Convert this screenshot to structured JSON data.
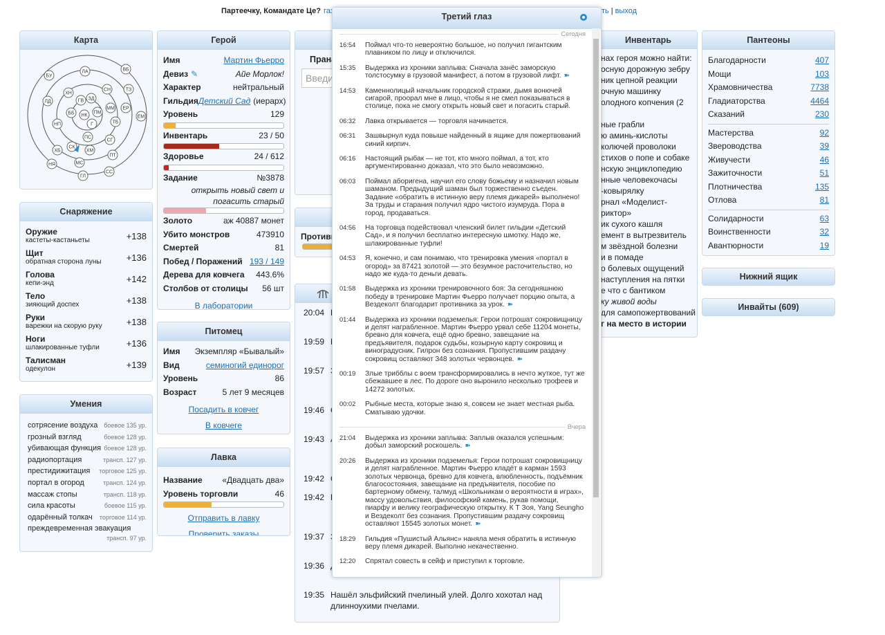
{
  "top_bar": {
    "greeting": "Партеечку, Командате Це?",
    "links": [
      "газ",
      "ть",
      "выход"
    ],
    "separator": "|"
  },
  "map": {
    "title": "Карта",
    "towns": [
      "БУ",
      "ЛА",
      "ВБ",
      "ТЗ",
      "ХН",
      "ГВ",
      "ЗД",
      "СН",
      "ЛД",
      "ББ",
      "НК",
      "ПМ",
      "ММ",
      "ЕР",
      "ЕМ",
      "Г",
      "ТБ",
      "НП",
      "ПС",
      "СГ",
      "ХБ",
      "СК",
      "ХМ",
      "ПТ",
      "НЯ",
      "МС",
      "СС",
      "ГЛ"
    ]
  },
  "hero": {
    "title": "Герой",
    "rows": [
      {
        "label": "Имя",
        "value": "Мартин Фьерро",
        "style": "link"
      },
      {
        "label": "Девиз",
        "icon": "✎",
        "value": "Айе Морлок!",
        "style": "italic"
      },
      {
        "label": "Характер",
        "value": "нейтральный"
      },
      {
        "label": "Гильдия",
        "value": "Детский Сад",
        "style": "italic-link",
        "suffix": "(иерарх)"
      },
      {
        "label": "Уровень",
        "value": "129",
        "bar": 10,
        "bar_color": "#f0b135"
      },
      {
        "label": "Инвентарь",
        "value": "23 / 50",
        "bar": 46,
        "bar_color": "#a32a1c"
      },
      {
        "label": "Здоровье",
        "value": "24 / 612",
        "bar": 4,
        "bar_color": "#d81c1c"
      },
      {
        "label": "Задание",
        "value": "№3878",
        "note": "открыть новый свет и погасить старый",
        "bar": 35,
        "bar_color": "#f2a7b0"
      },
      {
        "label": "Золото",
        "value": "аж 40887 монет"
      },
      {
        "label": "Убито монстров",
        "value": "473910"
      },
      {
        "label": "Смертей",
        "value": "81"
      },
      {
        "label": "Побед / Поражений",
        "value": "193 / 149",
        "style": "link"
      },
      {
        "label": "Дерева для ковчега",
        "value": "443.6%"
      },
      {
        "label": "Столбов от столицы",
        "value": "56 шт"
      }
    ],
    "links": [
      "В лаборатории"
    ]
  },
  "equipment": {
    "title": "Снаряжение",
    "items": [
      {
        "slot": "Оружие",
        "item": "кастеты-кастаньеты",
        "bonus": "+138"
      },
      {
        "slot": "Щит",
        "item": "обратная сторона луны",
        "bonus": "+136"
      },
      {
        "slot": "Голова",
        "item": "кепи-энд",
        "bonus": "+142"
      },
      {
        "slot": "Тело",
        "item": "зияющий доспех",
        "bonus": "+138"
      },
      {
        "slot": "Руки",
        "item": "варежки на скорую руку",
        "bonus": "+138"
      },
      {
        "slot": "Ноги",
        "item": "шлакированные туфли",
        "bonus": "+136"
      },
      {
        "slot": "Талисман",
        "item": "одекулон",
        "bonus": "+139"
      }
    ]
  },
  "skills": {
    "title": "Умения",
    "items": [
      {
        "name": "сотрясение воздуха",
        "level": "боевое 135 ур."
      },
      {
        "name": "грозный взгляд",
        "level": "боевое 128 ур."
      },
      {
        "name": "убивающая функция",
        "level": "боевое 128 ур."
      },
      {
        "name": "радиопортация",
        "level": "трансп. 127 ур."
      },
      {
        "name": "престидижитация",
        "level": "торговое 125 ур."
      },
      {
        "name": "портал в огород",
        "level": "трансп. 124 ур."
      },
      {
        "name": "массаж стопы",
        "level": "трансп. 118 ур."
      },
      {
        "name": "сила красоты",
        "level": "боевое 115 ур."
      },
      {
        "name": "одарённый толкач",
        "level": "торговое 114 ур."
      },
      {
        "name": "преждевременная эвакуация",
        "level": "трансп. 97 ур."
      }
    ]
  },
  "pet": {
    "title": "Питомец",
    "rows": [
      {
        "label": "Имя",
        "value": "Экземпляр «Бывалый»"
      },
      {
        "label": "Вид",
        "value": "семиногий единорог",
        "style": "link"
      },
      {
        "label": "Уровень",
        "value": "86"
      },
      {
        "label": "Возраст",
        "value": "5 лет 9 месяцев"
      }
    ],
    "links": [
      "Посадить в ковчег",
      "В ковчеге"
    ]
  },
  "shop": {
    "title": "Лавка",
    "rows": [
      {
        "label": "Название",
        "value": "«Двадцать два»"
      },
      {
        "label": "Уровень торговли",
        "value": "46",
        "bar": 40,
        "bar_color": "#f0b135"
      }
    ],
    "links": [
      "Отправить в лавку",
      "Проверить заказы"
    ]
  },
  "prana": {
    "label": "Прана",
    "input": "Введит"
  },
  "opponent": {
    "label": "Противн",
    "bar": 100,
    "bar_color": "#e9ae3c"
  },
  "diary": {
    "entries": [
      {
        "time": "20:04",
        "text": "Н"
      },
      {
        "time": "19:59",
        "text": "В"
      },
      {
        "time": "19:57",
        "text": "З"
      },
      {
        "time": "19:46",
        "text": "С"
      },
      {
        "time": "19:43",
        "text": "А"
      },
      {
        "time": "19:42",
        "text": "С"
      },
      {
        "time": "19:42",
        "text": "П"
      },
      {
        "time": "19:37",
        "text": "З"
      },
      {
        "time": "19:36",
        "text": "Д"
      },
      {
        "time": "19:35",
        "text": "Нашёл эльфийский пчелиный улей. Долго хохотал над длинноухими пчелами."
      }
    ]
  },
  "inventory": {
    "title": "Инвентарь",
    "lines": [
      {
        "text": "нах героя можно найти:"
      },
      {
        "text": "осную дорожную зебру"
      },
      {
        "text": "ник цепной реакции"
      },
      {
        "text": "очную машинку"
      },
      {
        "text": "олодного копчения (2"
      },
      {
        "text": "ные грабли"
      },
      {
        "text": "ю аминь-кислоты"
      },
      {
        "text": "колючей проволоки"
      },
      {
        "text": "стихов о попе и собаке"
      },
      {
        "text": "нскую энциклопедию"
      },
      {
        "text": "нные человекочасы"
      },
      {
        "text": "-ковырялку"
      },
      {
        "text": "рнал «Моделист-"
      },
      {
        "text": "риктор»"
      },
      {
        "text": "ик сухого кашля"
      },
      {
        "text": "емент в вытрезвитель"
      },
      {
        "text": "м звёздной болезни"
      },
      {
        "text": "и в помаде"
      },
      {
        "text": "о болевых ощущений"
      },
      {
        "text": "наступления на пятки"
      },
      {
        "text": "е что с бантиком"
      },
      {
        "text": "ку живой воды",
        "style": "italic"
      },
      {
        "text": "для самопожертвований"
      },
      {
        "text": "г на место в истории",
        "style": "bold"
      }
    ]
  },
  "pantheons": {
    "title": "Пантеоны",
    "groups": [
      [
        {
          "name": "Благодарности",
          "value": "407"
        },
        {
          "name": "Мощи",
          "value": "103"
        },
        {
          "name": "Храмовничества",
          "value": "7738"
        },
        {
          "name": "Гладиаторства",
          "value": "4464"
        },
        {
          "name": "Сказаний",
          "value": "230"
        }
      ],
      [
        {
          "name": "Мастерства",
          "value": "92"
        },
        {
          "name": "Звероводства",
          "value": "39"
        },
        {
          "name": "Живучести",
          "value": "46"
        },
        {
          "name": "Зажиточности",
          "value": "51"
        },
        {
          "name": "Плотничества",
          "value": "135"
        },
        {
          "name": "Отлова",
          "value": "81"
        }
      ],
      [
        {
          "name": "Солидарности",
          "value": "63"
        },
        {
          "name": "Воинственности",
          "value": "32"
        },
        {
          "name": "Авантюрности",
          "value": "19"
        }
      ]
    ]
  },
  "buttons": [
    "Нижний ящик",
    "Инвайты (609)"
  ],
  "third_eye": {
    "title": "Третий глаз",
    "days": [
      {
        "label": "Сегодня",
        "entries": [
          {
            "time": "16:54",
            "text": "Поймал что-то невероятно большое, но получил гигантским плавником по лицу и отключился."
          },
          {
            "time": "15:35",
            "text": "Выдержка из хроники заплыва: Сначала занёс заморскую толстосумку в грузовой манифест, а потом в грузовой лифт.",
            "more": "➽"
          },
          {
            "time": "14:53",
            "text": "Каменнолицый начальник городской стражи, дымя вонючей сигарой, проорал мне в лицо, чтобы я не смел показываться в столице, пока не смогу открыть новый свет и погасить старый."
          },
          {
            "time": "06:32",
            "text": "Лавка открывается — торговля начинается."
          },
          {
            "time": "06:31",
            "text": "Зашвырнул куда повыше найденный в ящике для пожертвований синий кирпич."
          },
          {
            "time": "06:16",
            "text": "Настоящий рыбак — не тот, кто много поймал, а тот, кто аргументированно доказал, что это было невозможно."
          },
          {
            "time": "06:03",
            "text": "Поймал аборигена, научил его слову божьему и назначил новым шаманом. Предыдущий шаман был торжественно съеден. Задание «обратить в истинную веру племя дикарей» выполнено! За труды и старания получил ядро чистого изумруда. Пора в город, продаваться."
          },
          {
            "time": "04:56",
            "text": "На торговца подействовал членский билет гильдии «Детский Сад», и я получил бесплатно интересную шмотку. Надо же, шлакированные туфли!"
          },
          {
            "time": "04:53",
            "text": "Я, конечно, и сам понимаю, что тренировка умения «портал в огород» за 87421 золотой — это безумное расточительство, но надо же куда-то деньги девать."
          },
          {
            "time": "01:58",
            "text": "Выдержка из хроники тренировочного боя: За сегодняшнюю победу в тренировке Мартин Фьерро получает порцию опыта, а Вездеколт благодарит противника за урок.",
            "more": "➽"
          },
          {
            "time": "01:44",
            "text": "Выдержка из хроники подземелья: Герои потрошат сокровищницу и делят награбленное. Мартин Фьерро урвал себе 11204 монеты, бревно для ковчега, ещё одно бревно, завещание на предъявителя, подарок судьбы, козырную карту сокровищ и виноградусник. Гилрон без сознания. Пропустившим раздачу сокровищ оставляют 348 золотых червонцев.",
            "more": "➽"
          },
          {
            "time": "00:19",
            "text": "Злые трибблы с воем трансформировались в нечто жуткое, тут же сбежавшее в лес. По дороге оно выронило несколько трофеев и 14272 золотых."
          },
          {
            "time": "00:02",
            "text": "Рыбные места, которые знаю я, совсем не знает местная рыба. Сматываю удочки."
          }
        ]
      },
      {
        "label": "Вчера",
        "entries": [
          {
            "time": "21:04",
            "text": "Выдержка из хроники заплыва: Заплыв оказался успешным: добыл заморский роскошель.",
            "more": "➽"
          },
          {
            "time": "20:26",
            "text": "Выдержка из хроники подземелья: Герои потрошат сокровищницу и делят награбленное. Мартин Фьерро кладёт в карман 1593 золотых червонца, бревно для ковчега, влюбленность, подъёмник благосостояния, завещание на предъявителя, пособие по бартерному обмену, талмуд «Школьникам о вероятности в играх», массу удовольствия, философский камень, рукав помощи, пиарфу и велику географическую открытку. К Т Зоя, Yang Seungho и Вездеколт без сознания. Пропустившим раздачу сокровищ оставляют 15545 золотых монет.",
            "more": "➽"
          },
          {
            "time": "18:29",
            "text": "Гильдия «Пушистый Альянс» наняла меня обратить в истинную веру племя дикарей. Выполню некачественно."
          },
          {
            "time": "12:20",
            "text": "Спрятал совесть в сейф и приступил к торговле."
          }
        ]
      }
    ]
  }
}
